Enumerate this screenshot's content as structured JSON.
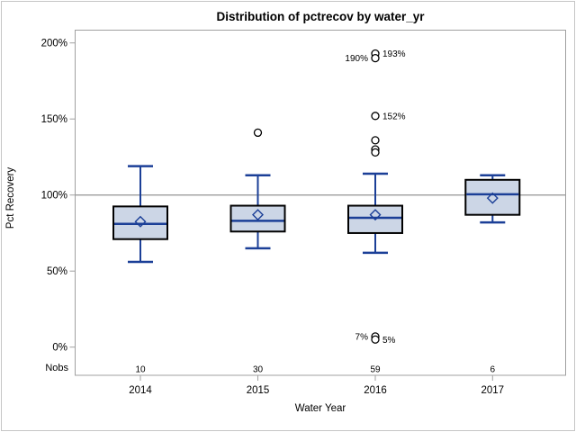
{
  "figure": {
    "background": "#ffffff",
    "border_color": "#c6c6c6"
  },
  "chart_data": {
    "type": "boxplot",
    "title": "Distribution of pctrecov by water_yr",
    "xlabel": "Water Year",
    "ylabel": "Pct Recovery",
    "ylim": [
      0,
      200
    ],
    "ytick_values": [
      0,
      50,
      100,
      150,
      200
    ],
    "ytick_labels": [
      "0%",
      "50%",
      "100%",
      "150%",
      "200%"
    ],
    "grid": false,
    "legend": "none",
    "reference_line_y": 100,
    "categories": [
      "2014",
      "2015",
      "2016",
      "2017"
    ],
    "nobs_header": "Nobs",
    "nobs": [
      "10",
      "30",
      "59",
      "6"
    ],
    "series": [
      {
        "category": "2014",
        "whisker_low": 56,
        "q1": 71,
        "median": 81,
        "mean": 82.5,
        "q3": 92.5,
        "whisker_high": 119,
        "outliers": []
      },
      {
        "category": "2015",
        "whisker_low": 65,
        "q1": 76,
        "median": 83,
        "mean": 87,
        "q3": 93,
        "whisker_high": 113,
        "outliers": [
          {
            "value": 141
          }
        ]
      },
      {
        "category": "2016",
        "whisker_low": 62,
        "q1": 75,
        "median": 85,
        "mean": 87,
        "q3": 93,
        "whisker_high": 114,
        "outliers": [
          {
            "value": 193,
            "label": "193%",
            "side": "right"
          },
          {
            "value": 190,
            "label": "190%",
            "side": "left"
          },
          {
            "value": 152,
            "label": "152%",
            "side": "right"
          },
          {
            "value": 136
          },
          {
            "value": 130
          },
          {
            "value": 128
          },
          {
            "value": 7,
            "label": "7%",
            "side": "left"
          },
          {
            "value": 5,
            "label": "5%",
            "side": "right"
          }
        ]
      },
      {
        "category": "2017",
        "whisker_low": 82,
        "q1": 87,
        "median": 100.5,
        "mean": 98,
        "q3": 110,
        "whisker_high": 113,
        "outliers": []
      }
    ],
    "colors": {
      "box_fill": "#ccd6e6",
      "box_border": "#000000",
      "line": "#1b3f97",
      "axis": "#a0a0a0",
      "reference_line": "#9d9d9d",
      "text": "#000000"
    }
  }
}
